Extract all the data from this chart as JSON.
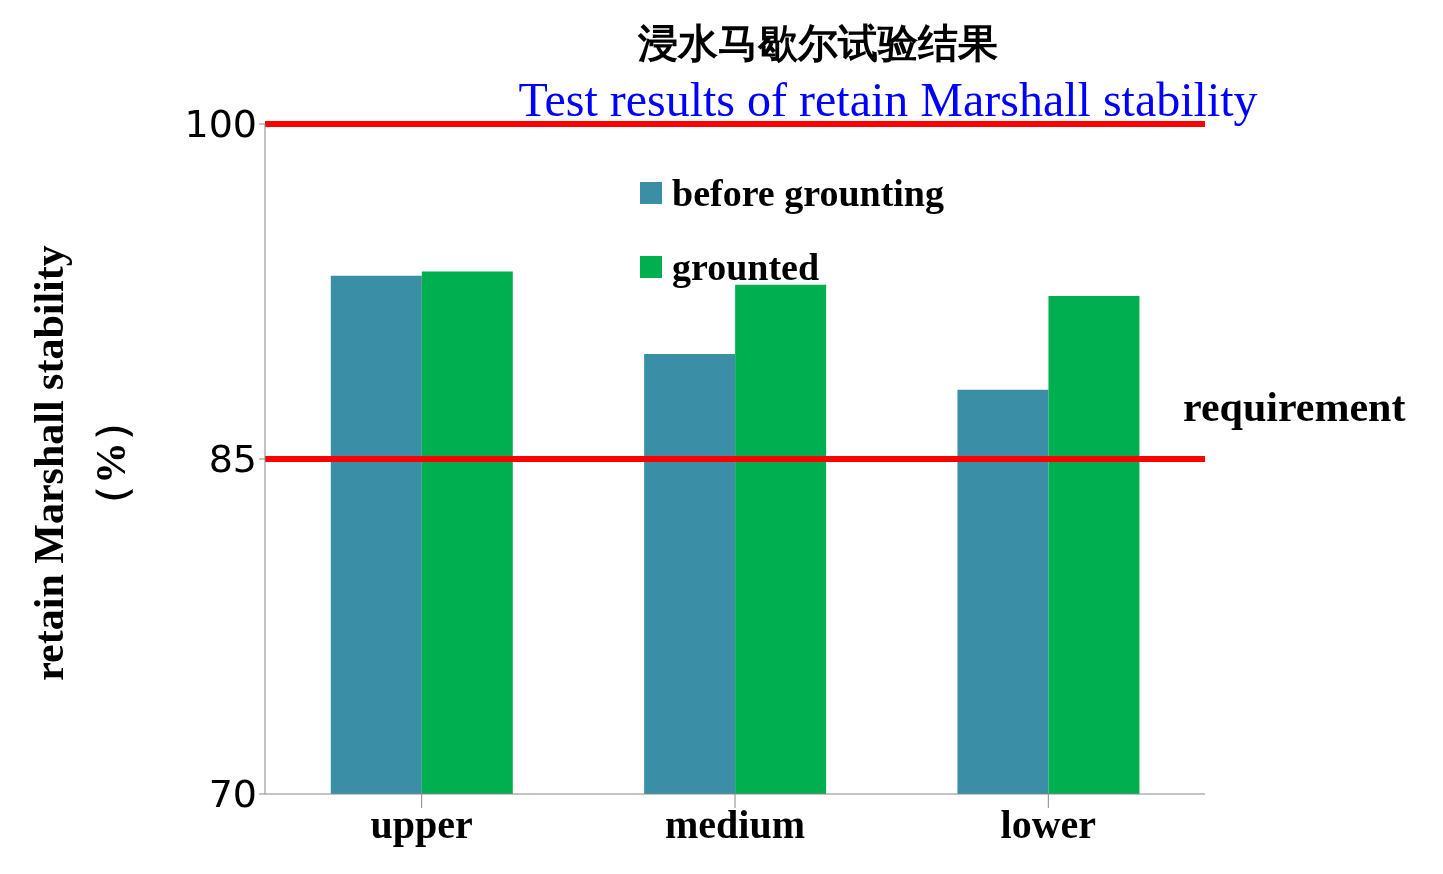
{
  "chart_data": {
    "type": "bar",
    "title": "浸水马歇尔试验结果",
    "subtitle": "Test results of retain Marshall stability",
    "ylabel": "retain Marshall stability\n（%）",
    "categories": [
      "upper",
      "medium",
      "lower"
    ],
    "series": [
      {
        "name": "before grounting",
        "color": "#3a8fa6",
        "values": [
          93.2,
          89.7,
          88.1
        ]
      },
      {
        "name": "grounted",
        "color": "#00b050",
        "values": [
          93.4,
          92.8,
          92.3
        ]
      }
    ],
    "ylim": [
      70,
      100
    ],
    "yticks": [
      70,
      85,
      100
    ],
    "grid": false,
    "legend": "top",
    "ref_lines": [
      {
        "axis": "y",
        "value": 100,
        "color": "#ff0000"
      },
      {
        "axis": "y",
        "value": 85,
        "label": "requirement",
        "color": "#ff0000"
      }
    ]
  }
}
